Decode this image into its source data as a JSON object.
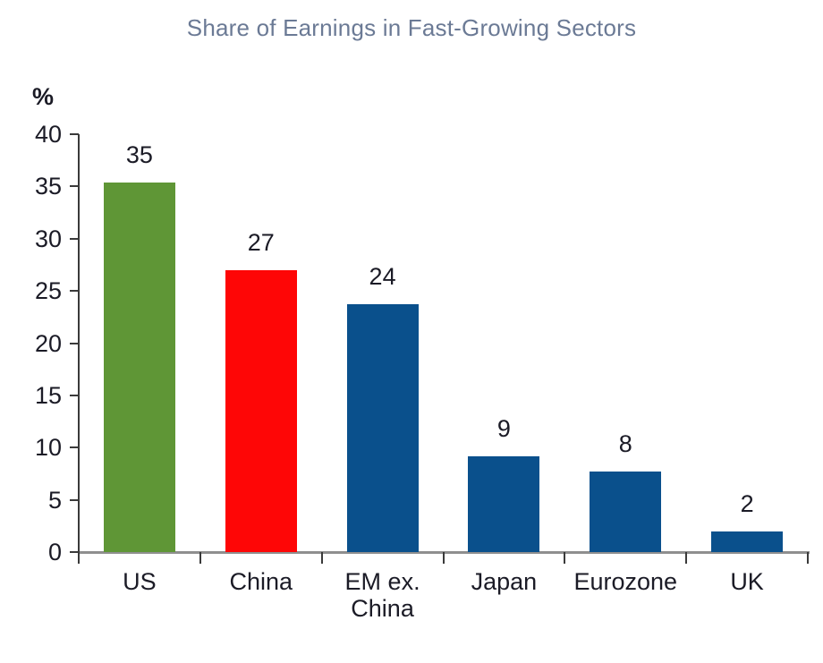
{
  "chart": {
    "title": "Share of Earnings in Fast-Growing Sectors",
    "y_unit": "%"
  },
  "chart_data": {
    "type": "bar",
    "title": "Share of Earnings in Fast-Growing Sectors",
    "xlabel": "",
    "ylabel": "%",
    "categories": [
      "US",
      "China",
      "EM ex.\nChina",
      "Japan",
      "Eurozone",
      "UK"
    ],
    "values": [
      35,
      27,
      24,
      9,
      8,
      2
    ],
    "value_labels": [
      "35",
      "27",
      "24",
      "9",
      "8",
      "2"
    ],
    "bar_heights_precise": [
      35.4,
      27.0,
      23.7,
      9.2,
      7.7,
      2.0
    ],
    "bar_colors": [
      "#5f9636",
      "#fe0606",
      "#0a508c",
      "#0a508c",
      "#0a508c",
      "#0a508c"
    ],
    "ylim": [
      0,
      40
    ],
    "yticks": [
      0,
      5,
      10,
      15,
      20,
      25,
      30,
      35,
      40
    ],
    "grid": false,
    "legend": false,
    "colors": {
      "title_text": "#6b7a95",
      "axis_text": "#1b1b26",
      "axis_line": "#3a3a3a",
      "baseline": "#8f8f8f",
      "us_green": "#5f9636",
      "china_red": "#fe0606",
      "default_blue": "#0a508c"
    }
  }
}
